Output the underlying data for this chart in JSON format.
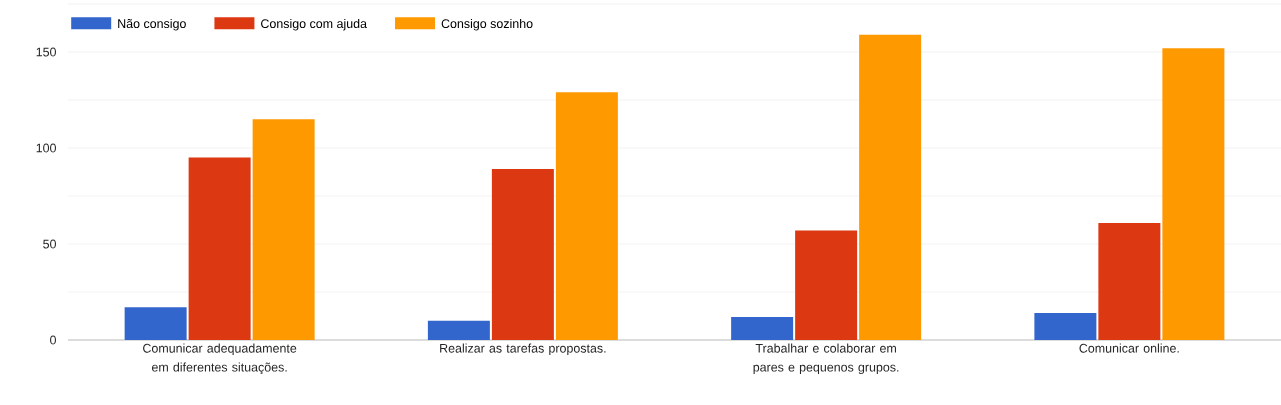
{
  "chart_data": {
    "type": "bar",
    "categories": [
      "Comunicar adequadamente em diferentes situações.",
      "Realizar as tarefas propostas.",
      "Trabalhar e colaborar em pares e pequenos grupos.",
      "Comunicar online."
    ],
    "series": [
      {
        "name": "Não consigo",
        "color": "#3366cc",
        "values": [
          17,
          10,
          12,
          14
        ]
      },
      {
        "name": "Consigo com ajuda",
        "color": "#dc3912",
        "values": [
          95,
          89,
          57,
          61
        ]
      },
      {
        "name": "Consigo sozinho",
        "color": "#ff9900",
        "values": [
          115,
          129,
          159,
          152
        ]
      }
    ],
    "ylim": [
      0,
      175
    ],
    "yticks": [
      0,
      {
        "value": 25,
        "label": null
      },
      50,
      {
        "value": 75,
        "label": null
      },
      100,
      {
        "value": 125,
        "label": null
      },
      150,
      {
        "value": 175,
        "label": null
      }
    ],
    "grid": "y",
    "legend": "top left"
  }
}
